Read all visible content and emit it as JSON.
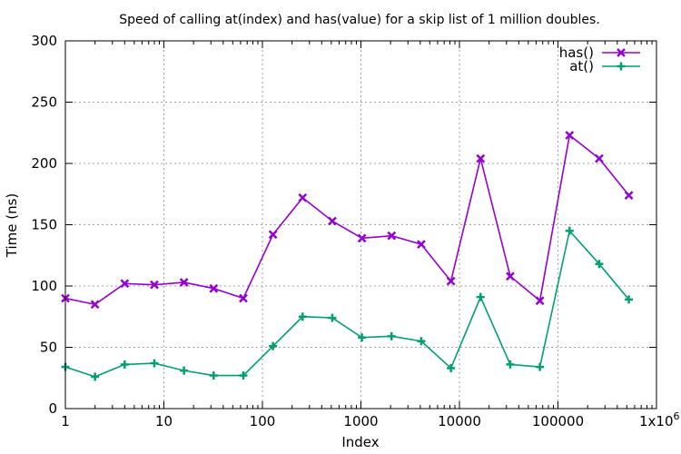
{
  "chart_data": {
    "type": "line",
    "title": "Speed of calling at(index) and has(value) for a skip list of 1 million doubles.",
    "xlabel": "Index",
    "ylabel": "Time (ns)",
    "x_scale": "log",
    "xlim": [
      1,
      1000000
    ],
    "ylim": [
      0,
      300
    ],
    "grid": true,
    "legend_position": "top-right",
    "x_ticks": [
      {
        "value": 1,
        "label": "1"
      },
      {
        "value": 10,
        "label": "10"
      },
      {
        "value": 100,
        "label": "100"
      },
      {
        "value": 1000,
        "label": "1000"
      },
      {
        "value": 10000,
        "label": "10000"
      },
      {
        "value": 100000,
        "label": "100000"
      }
    ],
    "x_tick_last": {
      "value": 1000000,
      "label": "1x10",
      "exponent": "6"
    },
    "y_ticks": [
      0,
      50,
      100,
      150,
      200,
      250,
      300
    ],
    "x": [
      1,
      2,
      4,
      8,
      16,
      32,
      64,
      128,
      256,
      512,
      1024,
      2048,
      4096,
      8192,
      16384,
      32768,
      65536,
      131072,
      262144,
      524288
    ],
    "series": [
      {
        "name": "has()",
        "color": "#9400d3",
        "marker": "x",
        "values": [
          90,
          85,
          102,
          101,
          103,
          98,
          90,
          142,
          172,
          153,
          139,
          141,
          134,
          104,
          204,
          108,
          88,
          223,
          204,
          174
        ]
      },
      {
        "name": "at()",
        "color": "#009e73",
        "marker": "plus",
        "values": [
          34,
          26,
          36,
          37,
          31,
          27,
          27,
          51,
          75,
          74,
          58,
          59,
          55,
          33,
          91,
          36,
          34,
          145,
          118,
          89
        ]
      }
    ]
  }
}
